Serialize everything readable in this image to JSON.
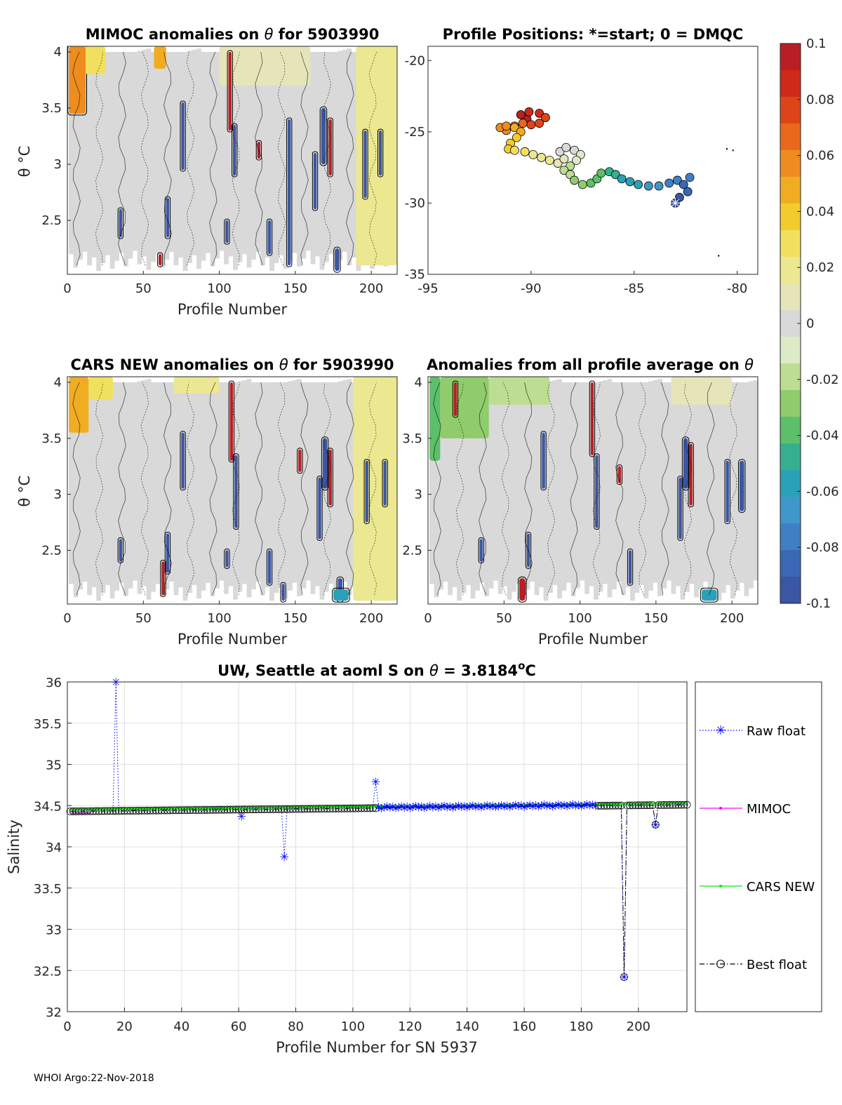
{
  "figure": {
    "footer": "WHOI Argo:22-Nov-2018"
  },
  "chart_data": [
    {
      "id": "mimoc",
      "type": "heatmap",
      "title_prefix": "MIMOC anomalies on ",
      "title_symbol": "θ",
      "title_suffix": "  for 5903990",
      "xlabel": "Profile Number",
      "ylabel": "θ °C",
      "xlim": [
        0,
        217
      ],
      "ylim": [
        2.02,
        4.05
      ],
      "xticks": [
        "0",
        "50",
        "100",
        "150",
        "200"
      ],
      "xtick_values": [
        0,
        50,
        100,
        150,
        200
      ],
      "yticks": [
        "2.5",
        "3",
        "3.5",
        "4"
      ],
      "ytick_values": [
        2.5,
        3,
        3.5,
        4
      ],
      "background_anomaly": 0.005,
      "patches": [
        {
          "x0": 1,
          "x1": 12,
          "y0": 3.45,
          "y1": 4.05,
          "v": 0.06
        },
        {
          "x0": 12,
          "x1": 25,
          "y0": 3.8,
          "y1": 4.05,
          "v": 0.03
        },
        {
          "x0": 57,
          "x1": 65,
          "y0": 3.85,
          "y1": 4.05,
          "v": 0.05
        },
        {
          "x0": 190,
          "x1": 217,
          "y0": 2.1,
          "y1": 4.05,
          "v": 0.02
        },
        {
          "x0": 100,
          "x1": 160,
          "y0": 3.7,
          "y1": 4.05,
          "v": 0.015
        },
        {
          "x0": 172,
          "x1": 174,
          "y0": 2.9,
          "y1": 3.4,
          "v": 0.1
        },
        {
          "x0": 106,
          "x1": 108,
          "y0": 3.3,
          "y1": 4.0,
          "v": 0.1
        },
        {
          "x0": 125,
          "x1": 127,
          "y0": 3.05,
          "y1": 3.2,
          "v": 0.1
        },
        {
          "x0": 60,
          "x1": 62,
          "y0": 2.1,
          "y1": 2.2,
          "v": 0.1
        },
        {
          "x0": 75,
          "x1": 77,
          "y0": 2.95,
          "y1": 3.55,
          "v": -0.1
        },
        {
          "x0": 34,
          "x1": 36,
          "y0": 2.35,
          "y1": 2.6,
          "v": -0.1
        },
        {
          "x0": 65,
          "x1": 67,
          "y0": 2.35,
          "y1": 2.7,
          "v": -0.1
        },
        {
          "x0": 104,
          "x1": 106,
          "y0": 2.3,
          "y1": 2.5,
          "v": -0.1
        },
        {
          "x0": 109,
          "x1": 111,
          "y0": 2.9,
          "y1": 3.35,
          "v": -0.1
        },
        {
          "x0": 132,
          "x1": 134,
          "y0": 2.2,
          "y1": 2.5,
          "v": -0.1
        },
        {
          "x0": 145,
          "x1": 147,
          "y0": 2.1,
          "y1": 3.4,
          "v": -0.1
        },
        {
          "x0": 162,
          "x1": 164,
          "y0": 2.6,
          "y1": 3.1,
          "v": -0.1
        },
        {
          "x0": 167,
          "x1": 170,
          "y0": 3.0,
          "y1": 3.5,
          "v": -0.1
        },
        {
          "x0": 176,
          "x1": 179,
          "y0": 2.05,
          "y1": 2.25,
          "v": -0.1
        },
        {
          "x0": 195,
          "x1": 197,
          "y0": 2.7,
          "y1": 3.3,
          "v": -0.1
        },
        {
          "x0": 205,
          "x1": 207,
          "y0": 2.9,
          "y1": 3.3,
          "v": -0.1
        }
      ]
    },
    {
      "id": "positions",
      "type": "scatter",
      "title": "Profile Positions: *=start; 0 = DMQC",
      "xlim": [
        -95,
        -79
      ],
      "ylim": [
        -35,
        -19
      ],
      "xticks": [
        "-95",
        "-90",
        "-85",
        "-80"
      ],
      "xtick_values": [
        -95,
        -90,
        -85,
        -80
      ],
      "yticks": [
        "-35",
        "-30",
        "-25",
        "-20"
      ],
      "ytick_values": [
        -35,
        -30,
        -25,
        -20
      ],
      "track": [
        [
          -83.0,
          -30.0
        ],
        [
          -82.8,
          -29.6
        ],
        [
          -82.4,
          -29.2
        ],
        [
          -82.6,
          -28.7
        ],
        [
          -82.3,
          -28.2
        ],
        [
          -82.9,
          -28.4
        ],
        [
          -83.3,
          -28.6
        ],
        [
          -83.8,
          -28.8
        ],
        [
          -84.3,
          -28.8
        ],
        [
          -84.8,
          -28.7
        ],
        [
          -85.2,
          -28.5
        ],
        [
          -85.6,
          -28.3
        ],
        [
          -85.9,
          -28.0
        ],
        [
          -86.2,
          -27.8
        ],
        [
          -86.6,
          -27.9
        ],
        [
          -86.8,
          -28.3
        ],
        [
          -87.1,
          -28.6
        ],
        [
          -87.5,
          -28.7
        ],
        [
          -87.9,
          -28.4
        ],
        [
          -88.1,
          -28.0
        ],
        [
          -88.4,
          -27.7
        ],
        [
          -88.1,
          -27.4
        ],
        [
          -87.8,
          -27.0
        ],
        [
          -87.6,
          -26.6
        ],
        [
          -87.9,
          -26.3
        ],
        [
          -88.3,
          -26.1
        ],
        [
          -88.6,
          -26.4
        ],
        [
          -88.4,
          -26.9
        ],
        [
          -88.7,
          -27.2
        ],
        [
          -89.1,
          -27.0
        ],
        [
          -89.5,
          -26.8
        ],
        [
          -89.9,
          -26.6
        ],
        [
          -90.3,
          -26.4
        ],
        [
          -90.8,
          -26.3
        ],
        [
          -91.1,
          -26.2
        ],
        [
          -91.0,
          -25.8
        ],
        [
          -90.7,
          -25.4
        ],
        [
          -90.5,
          -25.0
        ],
        [
          -90.8,
          -24.7
        ],
        [
          -91.2,
          -24.6
        ],
        [
          -91.5,
          -24.7
        ],
        [
          -91.2,
          -24.9
        ],
        [
          -90.8,
          -24.6
        ],
        [
          -90.4,
          -24.4
        ],
        [
          -90.0,
          -24.5
        ],
        [
          -89.6,
          -24.4
        ],
        [
          -89.3,
          -24.0
        ],
        [
          -89.6,
          -23.7
        ],
        [
          -90.1,
          -23.6
        ],
        [
          -90.5,
          -23.8
        ],
        [
          -90.2,
          -24.1
        ]
      ],
      "start": [
        -83.0,
        -30.0
      ],
      "stray_points": [
        [
          -80.5,
          -26.2
        ],
        [
          -80.2,
          -26.3
        ],
        [
          -80.9,
          -33.7
        ]
      ]
    },
    {
      "id": "cars",
      "type": "heatmap",
      "title_prefix": "CARS NEW anomalies on ",
      "title_symbol": "θ",
      "title_suffix": " for 5903990",
      "xlabel": "Profile Number",
      "ylabel": "θ °C",
      "xlim": [
        0,
        217
      ],
      "ylim": [
        2.02,
        4.05
      ],
      "xticks": [
        "0",
        "50",
        "100",
        "150",
        "200"
      ],
      "xtick_values": [
        0,
        50,
        100,
        150,
        200
      ],
      "yticks": [
        "2.5",
        "3",
        "3.5",
        "4"
      ],
      "ytick_values": [
        2.5,
        3,
        3.5,
        4
      ],
      "background_anomaly": 0.005,
      "patches": [
        {
          "x0": 1,
          "x1": 14,
          "y0": 3.55,
          "y1": 4.05,
          "v": 0.05
        },
        {
          "x0": 14,
          "x1": 30,
          "y0": 3.85,
          "y1": 4.05,
          "v": 0.025
        },
        {
          "x0": 70,
          "x1": 100,
          "y0": 3.9,
          "y1": 4.05,
          "v": 0.02
        },
        {
          "x0": 188,
          "x1": 217,
          "y0": 2.05,
          "y1": 4.05,
          "v": 0.02
        },
        {
          "x0": 172,
          "x1": 174,
          "y0": 2.9,
          "y1": 3.4,
          "v": 0.1
        },
        {
          "x0": 107,
          "x1": 109,
          "y0": 3.3,
          "y1": 4.0,
          "v": 0.1
        },
        {
          "x0": 62,
          "x1": 64,
          "y0": 2.1,
          "y1": 2.4,
          "v": 0.1
        },
        {
          "x0": 152,
          "x1": 154,
          "y0": 3.2,
          "y1": 3.4,
          "v": 0.1
        },
        {
          "x0": 75,
          "x1": 77,
          "y0": 3.05,
          "y1": 3.55,
          "v": -0.1
        },
        {
          "x0": 34,
          "x1": 36,
          "y0": 2.4,
          "y1": 2.6,
          "v": -0.1
        },
        {
          "x0": 65,
          "x1": 67,
          "y0": 2.3,
          "y1": 2.65,
          "v": -0.1
        },
        {
          "x0": 104,
          "x1": 106,
          "y0": 2.35,
          "y1": 2.5,
          "v": -0.1
        },
        {
          "x0": 110,
          "x1": 112,
          "y0": 2.7,
          "y1": 3.35,
          "v": -0.1
        },
        {
          "x0": 132,
          "x1": 134,
          "y0": 2.2,
          "y1": 2.5,
          "v": -0.1
        },
        {
          "x0": 141,
          "x1": 143,
          "y0": 2.05,
          "y1": 2.2,
          "v": -0.1
        },
        {
          "x0": 165,
          "x1": 167,
          "y0": 2.6,
          "y1": 3.15,
          "v": -0.1
        },
        {
          "x0": 168,
          "x1": 171,
          "y0": 3.05,
          "y1": 3.5,
          "v": -0.1
        },
        {
          "x0": 178,
          "x1": 181,
          "y0": 2.05,
          "y1": 2.25,
          "v": -0.1
        },
        {
          "x0": 196,
          "x1": 198,
          "y0": 2.75,
          "y1": 3.3,
          "v": -0.1
        },
        {
          "x0": 208,
          "x1": 210,
          "y0": 2.9,
          "y1": 3.3,
          "v": -0.1
        },
        {
          "x0": 175,
          "x1": 185,
          "y0": 2.05,
          "y1": 2.15,
          "v": -0.06
        }
      ]
    },
    {
      "id": "allavg",
      "type": "heatmap",
      "title_prefix": "Anomalies from all profile average on ",
      "title_symbol": "θ",
      "title_suffix": "",
      "xlabel": "Profile Number",
      "ylabel": "",
      "xlim": [
        0,
        217
      ],
      "ylim": [
        2.02,
        4.05
      ],
      "xticks": [
        "0",
        "50",
        "100",
        "150",
        "200"
      ],
      "xtick_values": [
        0,
        50,
        100,
        150,
        200
      ],
      "yticks": [
        "2.5",
        "3",
        "3.5",
        "4"
      ],
      "ytick_values": [
        2.5,
        3,
        3.5,
        4
      ],
      "background_anomaly": 0.002,
      "patches": [
        {
          "x0": 1,
          "x1": 8,
          "y0": 3.3,
          "y1": 4.05,
          "v": -0.045
        },
        {
          "x0": 8,
          "x1": 40,
          "y0": 3.5,
          "y1": 4.05,
          "v": -0.025
        },
        {
          "x0": 40,
          "x1": 80,
          "y0": 3.8,
          "y1": 4.05,
          "v": -0.02
        },
        {
          "x0": 160,
          "x1": 200,
          "y0": 3.8,
          "y1": 4.05,
          "v": 0.015
        },
        {
          "x0": 17,
          "x1": 19,
          "y0": 3.7,
          "y1": 4.0,
          "v": 0.1
        },
        {
          "x0": 107,
          "x1": 109,
          "y0": 3.35,
          "y1": 4.0,
          "v": 0.1
        },
        {
          "x0": 172,
          "x1": 174,
          "y0": 2.9,
          "y1": 3.45,
          "v": 0.1
        },
        {
          "x0": 125,
          "x1": 127,
          "y0": 3.1,
          "y1": 3.25,
          "v": 0.1
        },
        {
          "x0": 60,
          "x1": 64,
          "y0": 2.05,
          "y1": 2.25,
          "v": 0.1
        },
        {
          "x0": 75,
          "x1": 77,
          "y0": 3.05,
          "y1": 3.55,
          "v": -0.1
        },
        {
          "x0": 34,
          "x1": 36,
          "y0": 2.4,
          "y1": 2.6,
          "v": -0.1
        },
        {
          "x0": 65,
          "x1": 67,
          "y0": 2.35,
          "y1": 2.65,
          "v": -0.1
        },
        {
          "x0": 110,
          "x1": 112,
          "y0": 2.7,
          "y1": 3.35,
          "v": -0.1
        },
        {
          "x0": 132,
          "x1": 134,
          "y0": 2.2,
          "y1": 2.5,
          "v": -0.1
        },
        {
          "x0": 165,
          "x1": 167,
          "y0": 2.6,
          "y1": 3.15,
          "v": -0.1
        },
        {
          "x0": 168,
          "x1": 171,
          "y0": 3.05,
          "y1": 3.5,
          "v": -0.1
        },
        {
          "x0": 196,
          "x1": 198,
          "y0": 2.75,
          "y1": 3.3,
          "v": -0.1
        },
        {
          "x0": 205,
          "x1": 208,
          "y0": 2.85,
          "y1": 3.3,
          "v": -0.1
        },
        {
          "x0": 180,
          "x1": 190,
          "y0": 2.05,
          "y1": 2.15,
          "v": -0.06
        }
      ]
    },
    {
      "id": "colorbar",
      "type": "colorbar",
      "range": [
        -0.1,
        0.1
      ],
      "ticks": [
        "0.1",
        "0.08",
        "0.06",
        "0.04",
        "0.02",
        "0",
        "-0.02",
        "-0.04",
        "-0.06",
        "-0.08",
        "-0.1"
      ],
      "tick_values": [
        0.1,
        0.08,
        0.06,
        0.04,
        0.02,
        0,
        -0.02,
        -0.04,
        -0.06,
        -0.08,
        -0.1
      ],
      "levels": [
        [
          -0.1,
          "#3a56a4"
        ],
        [
          -0.09,
          "#3b68b5"
        ],
        [
          -0.08,
          "#3f80c4"
        ],
        [
          -0.07,
          "#3f97ca"
        ],
        [
          -0.06,
          "#2aa1b6"
        ],
        [
          -0.05,
          "#34b08e"
        ],
        [
          -0.04,
          "#5cbf6a"
        ],
        [
          -0.03,
          "#8fcc6b"
        ],
        [
          -0.02,
          "#bcdd92"
        ],
        [
          -0.01,
          "#dcebc6"
        ],
        [
          0.0,
          "#d9d9d9"
        ],
        [
          0.01,
          "#e6e5b9"
        ],
        [
          0.02,
          "#ece791"
        ],
        [
          0.03,
          "#f1e05e"
        ],
        [
          0.04,
          "#f2cc2c"
        ],
        [
          0.05,
          "#f1ad22"
        ],
        [
          0.06,
          "#ee8c1f"
        ],
        [
          0.07,
          "#e9681c"
        ],
        [
          0.08,
          "#de4419"
        ],
        [
          0.09,
          "#cf2a19"
        ],
        [
          0.1,
          "#b81f24"
        ]
      ]
    },
    {
      "id": "salinity",
      "type": "line",
      "title_prefix": "UW, Seattle at aoml S on ",
      "title_symbol": "θ",
      "title_suffix": " = 3.8184",
      "title_sup": "o",
      "title_unit": "C",
      "xlabel": "Profile Number for SN 5937",
      "ylabel": "Salinity",
      "xlim": [
        0,
        217
      ],
      "ylim": [
        32,
        36
      ],
      "xticks": [
        "0",
        "20",
        "40",
        "60",
        "80",
        "100",
        "120",
        "140",
        "160",
        "180",
        "200"
      ],
      "xtick_values": [
        0,
        20,
        40,
        60,
        80,
        100,
        120,
        140,
        160,
        180,
        200
      ],
      "yticks": [
        "32",
        "32.5",
        "33",
        "33.5",
        "34",
        "34.5",
        "35",
        "35.5",
        "36"
      ],
      "ytick_values": [
        32,
        32.5,
        33,
        33.5,
        34,
        34.5,
        35,
        35.5,
        36
      ],
      "base": {
        "x_start": 1,
        "x_end": 217,
        "y_start": 34.44,
        "y_end": 34.52
      },
      "outliers": [
        {
          "x": 17,
          "y": 36.0,
          "series": "raw"
        },
        {
          "x": 61,
          "y": 34.37,
          "series": "raw"
        },
        {
          "x": 76,
          "y": 33.88,
          "series": "raw"
        },
        {
          "x": 108,
          "y": 34.79,
          "series": "raw"
        },
        {
          "x": 195,
          "y": 32.42,
          "series": "both"
        },
        {
          "x": 206,
          "y": 34.27,
          "series": "both"
        }
      ],
      "best_gap": [
        108,
        186
      ],
      "series": [
        {
          "name": "Raw float",
          "color": "#0000ff"
        },
        {
          "name": "MIMOC",
          "color": "#ff00ff"
        },
        {
          "name": "CARS NEW",
          "color": "#00ee00"
        },
        {
          "name": "Best float",
          "color": "#000000"
        }
      ]
    }
  ]
}
